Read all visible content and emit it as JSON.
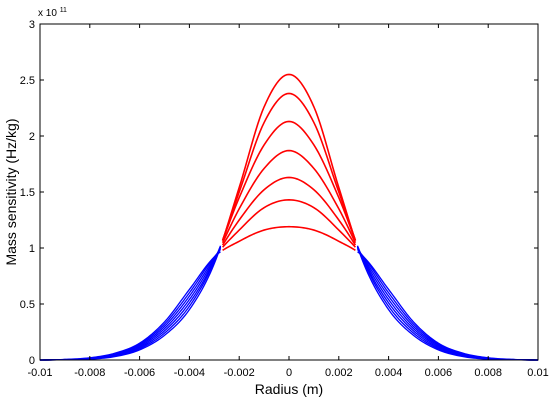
{
  "chart_data": {
    "type": "line",
    "title": "",
    "xlabel": "Radius (m)",
    "ylabel": "Mass sensitivity (Hz/kg)",
    "y_multiplier_label": "x 10",
    "y_multiplier_exponent": "11",
    "xlim": [
      -0.01,
      0.01
    ],
    "ylim": [
      0,
      3
    ],
    "x_ticks": [
      -0.01,
      -0.008,
      -0.006,
      -0.004,
      -0.002,
      0,
      0.002,
      0.004,
      0.006,
      0.008,
      0.01
    ],
    "x_tick_labels": [
      "-0.01",
      "-0.008",
      "-0.006",
      "-0.004",
      "-0.002",
      "0",
      "0.002",
      "0.004",
      "0.006",
      "0.008",
      "0.01"
    ],
    "y_ticks": [
      0,
      0.5,
      1,
      1.5,
      2,
      2.5,
      3
    ],
    "y_tick_labels": [
      "0",
      "0.5",
      "1",
      "1.5",
      "2",
      "2.5",
      "3"
    ],
    "grid": false,
    "legend": "none",
    "electrode_radius": 0.0027,
    "colors": {
      "inside_electrode": "#ff0000",
      "outside_electrode": "#0000ff",
      "axes": "#000000"
    },
    "x": [
      -0.01,
      -0.009,
      -0.008,
      -0.007,
      -0.006,
      -0.005,
      -0.004,
      -0.003,
      -0.002,
      -0.001,
      0,
      0.001,
      0.002,
      0.003,
      0.004,
      0.005,
      0.006,
      0.007,
      0.008,
      0.009,
      0.01
    ],
    "series": [
      {
        "peak": 2.55,
        "values": [
          0,
          0.002,
          0.008,
          0.03,
          0.09,
          0.22,
          0.45,
          0.86,
          1.54,
          2.26,
          2.55,
          2.26,
          1.54,
          0.86,
          0.45,
          0.22,
          0.09,
          0.03,
          0.008,
          0.002,
          0
        ]
      },
      {
        "peak": 2.38,
        "values": [
          0,
          0.002,
          0.01,
          0.035,
          0.1,
          0.24,
          0.48,
          0.88,
          1.5,
          2.12,
          2.38,
          2.12,
          1.5,
          0.88,
          0.48,
          0.24,
          0.1,
          0.035,
          0.01,
          0.002,
          0
        ]
      },
      {
        "peak": 2.13,
        "values": [
          0,
          0.003,
          0.012,
          0.04,
          0.11,
          0.26,
          0.51,
          0.89,
          1.45,
          1.92,
          2.13,
          1.92,
          1.45,
          0.89,
          0.51,
          0.26,
          0.11,
          0.04,
          0.012,
          0.003,
          0
        ]
      },
      {
        "peak": 1.87,
        "values": [
          0,
          0.003,
          0.014,
          0.045,
          0.12,
          0.28,
          0.54,
          0.9,
          1.35,
          1.71,
          1.87,
          1.71,
          1.35,
          0.9,
          0.54,
          0.28,
          0.12,
          0.045,
          0.014,
          0.003,
          0
        ]
      },
      {
        "peak": 1.63,
        "values": [
          0,
          0.004,
          0.016,
          0.05,
          0.13,
          0.3,
          0.57,
          0.91,
          1.25,
          1.52,
          1.63,
          1.52,
          1.25,
          0.91,
          0.57,
          0.3,
          0.13,
          0.05,
          0.016,
          0.004,
          0
        ]
      },
      {
        "peak": 1.43,
        "values": [
          0,
          0.004,
          0.018,
          0.055,
          0.14,
          0.32,
          0.6,
          0.92,
          1.16,
          1.36,
          1.43,
          1.36,
          1.16,
          0.92,
          0.6,
          0.32,
          0.14,
          0.055,
          0.018,
          0.004,
          0
        ]
      },
      {
        "peak": 1.19,
        "values": [
          0,
          0.005,
          0.02,
          0.06,
          0.15,
          0.34,
          0.63,
          0.92,
          1.06,
          1.16,
          1.19,
          1.16,
          1.06,
          0.92,
          0.63,
          0.34,
          0.15,
          0.06,
          0.02,
          0.005,
          0
        ]
      }
    ]
  }
}
